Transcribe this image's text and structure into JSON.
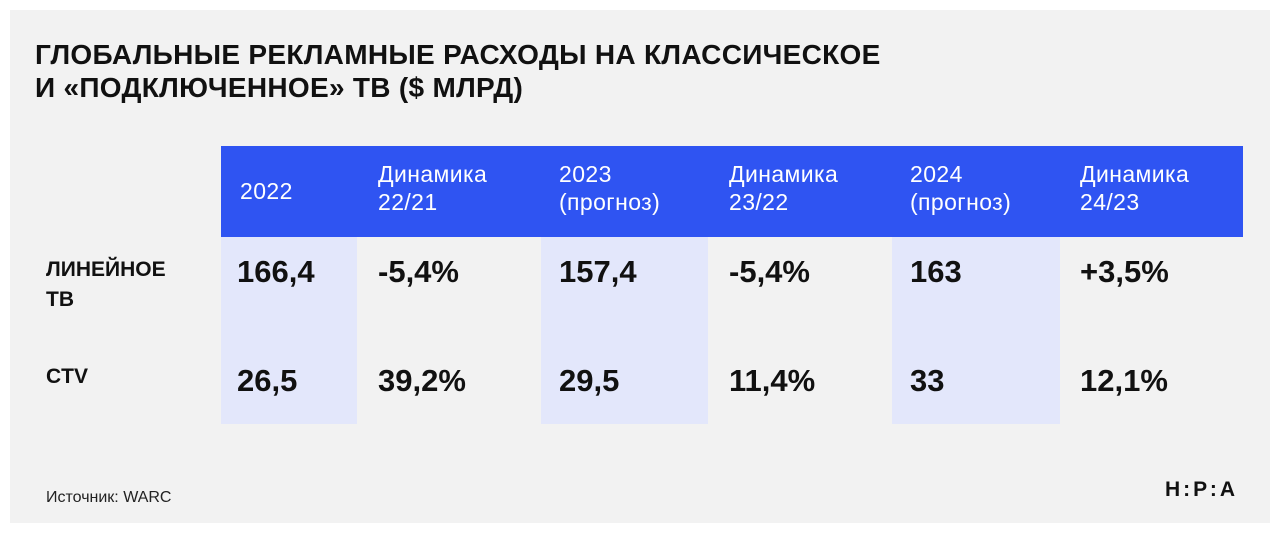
{
  "title_lines": [
    "ГЛОБАЛЬНЫЕ РЕКЛАМНЫЕ РАСХОДЫ НА КЛАССИЧЕСКОЕ",
    "И «ПОДКЛЮЧЕННОЕ» ТВ ($ МЛРД)"
  ],
  "colors": {
    "header": "#2f54f2",
    "highlight_column": "#e3e7fb",
    "background": "#f2f2f2"
  },
  "chart_data": {
    "type": "table",
    "columns": [
      "2022",
      "Динамика\n22/21",
      "2023\n(прогноз)",
      "Динамика\n23/22",
      "2024\n(прогноз)",
      "Динамика\n24/23"
    ],
    "rows": [
      {
        "label": "ЛИНЕЙНОЕ\nТВ",
        "cells": [
          "166,4",
          "-5,4%",
          "157,4",
          "-5,4%",
          "163",
          "+3,5%"
        ]
      },
      {
        "label": "CTV",
        "cells": [
          "26,5",
          "39,2%",
          "29,5",
          "11,4%",
          "33",
          "12,1%"
        ]
      }
    ]
  },
  "source": "Источник: WARC",
  "logo": "Н:Р:А"
}
